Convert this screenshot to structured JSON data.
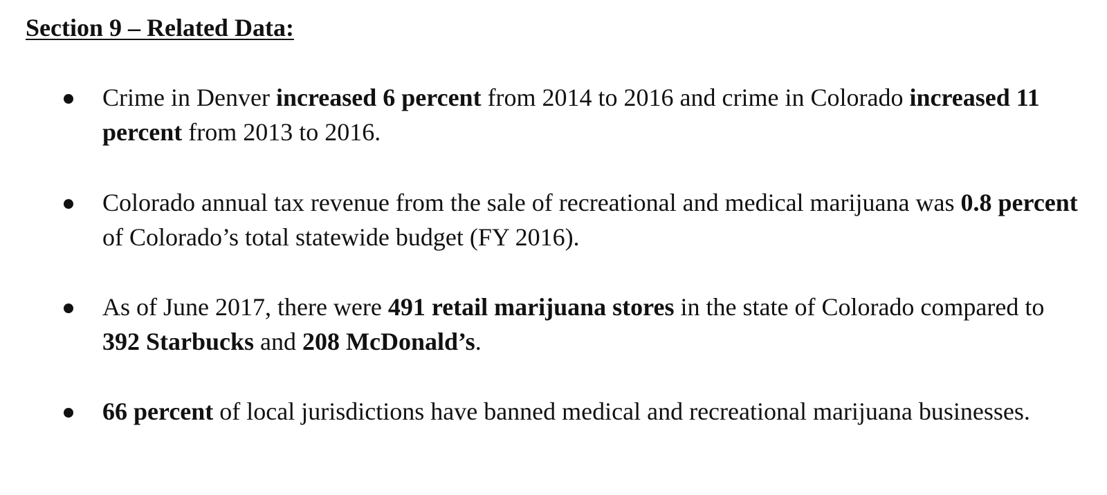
{
  "section": {
    "heading": "Section 9 – Related Data:"
  },
  "bullets": [
    {
      "parts": [
        {
          "text": "Crime in Denver ",
          "bold": false
        },
        {
          "text": "increased 6 percent",
          "bold": true
        },
        {
          "text": " from 2014 to 2016 and crime in Colorado ",
          "bold": false
        },
        {
          "text": "increased 11 percent",
          "bold": true
        },
        {
          "text": " from 2013 to 2016.",
          "bold": false
        }
      ]
    },
    {
      "parts": [
        {
          "text": "Colorado annual tax revenue from the sale of recreational and medical marijuana was ",
          "bold": false
        },
        {
          "text": "0.8 percent",
          "bold": true
        },
        {
          "text": " of Colorado’s total statewide budget (FY 2016).",
          "bold": false
        }
      ]
    },
    {
      "parts": [
        {
          "text": "As of June 2017, there were ",
          "bold": false
        },
        {
          "text": "491 retail marijuana stores",
          "bold": true
        },
        {
          "text": " in the state of Colorado compared to ",
          "bold": false
        },
        {
          "text": "392 Starbucks",
          "bold": true
        },
        {
          "text": " and ",
          "bold": false
        },
        {
          "text": "208 McDonald’s",
          "bold": true
        },
        {
          "text": ".",
          "bold": false
        }
      ]
    },
    {
      "parts": [
        {
          "text": "66 percent",
          "bold": true
        },
        {
          "text": " of local jurisdictions have banned medical and recreational marijuana businesses.",
          "bold": false
        }
      ]
    }
  ]
}
